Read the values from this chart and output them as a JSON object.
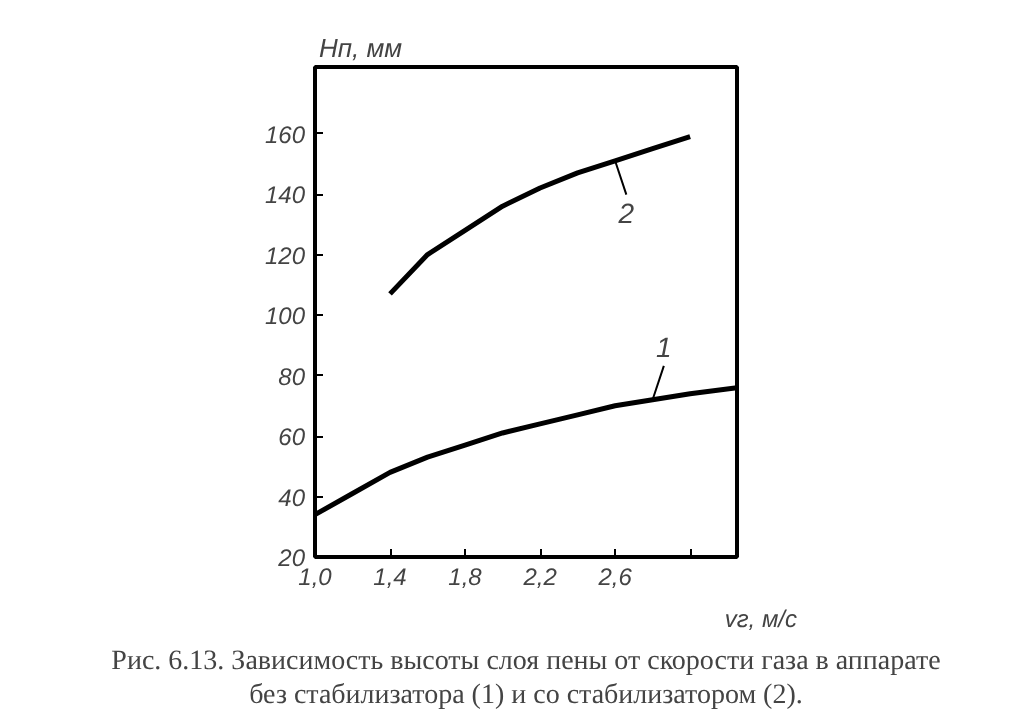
{
  "chart_data": {
    "type": "line",
    "xlabel": "vг, м/с",
    "ylabel": "Hп, мм",
    "xlim": [
      1.0,
      3.25
    ],
    "ylim": [
      20,
      182
    ],
    "xticks": [
      {
        "value": 1.0,
        "label": "1,0"
      },
      {
        "value": 1.4,
        "label": "1,4"
      },
      {
        "value": 1.8,
        "label": "1,8"
      },
      {
        "value": 2.2,
        "label": "2,2"
      },
      {
        "value": 2.6,
        "label": "2,6"
      },
      {
        "value": 3.0,
        "label": null
      }
    ],
    "yticks": [
      20,
      40,
      60,
      80,
      100,
      120,
      140,
      160
    ],
    "series": [
      {
        "name": "1",
        "color": "#000000",
        "x": [
          1.0,
          1.2,
          1.4,
          1.6,
          1.8,
          2.0,
          2.2,
          2.4,
          2.6,
          2.8,
          3.0,
          3.25
        ],
        "values": [
          34,
          41,
          48,
          53,
          57,
          61,
          64,
          67,
          70,
          72,
          74,
          76
        ]
      },
      {
        "name": "2",
        "color": "#000000",
        "x": [
          1.4,
          1.6,
          1.8,
          2.0,
          2.2,
          2.4,
          2.6,
          2.8,
          3.0
        ],
        "values": [
          107,
          120,
          128,
          136,
          142,
          147,
          151,
          155,
          159
        ]
      }
    ],
    "grid": false,
    "marker": "none",
    "line_style": "solid",
    "annotations": [
      "Рис. 6.13. Зависимость высоты слоя пены от скорости газа в аппарате без стабилизатора (1) и со стабилизатором (2)."
    ]
  }
}
